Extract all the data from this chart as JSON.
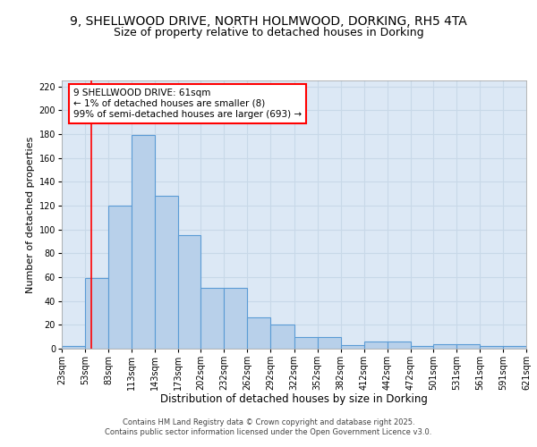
{
  "title1": "9, SHELLWOOD DRIVE, NORTH HOLMWOOD, DORKING, RH5 4TA",
  "title2": "Size of property relative to detached houses in Dorking",
  "xlabel": "Distribution of detached houses by size in Dorking",
  "ylabel": "Number of detached properties",
  "bar_values": [
    2,
    59,
    120,
    179,
    128,
    95,
    51,
    51,
    26,
    20,
    10,
    10,
    3,
    6,
    6,
    2,
    4,
    4,
    2,
    2
  ],
  "bin_left": [
    23,
    53,
    83,
    113,
    143,
    173,
    202,
    232,
    262,
    292,
    322,
    352,
    382,
    412,
    442,
    472,
    501,
    531,
    561,
    591
  ],
  "bin_right": [
    53,
    83,
    113,
    143,
    173,
    202,
    232,
    262,
    292,
    322,
    352,
    382,
    412,
    442,
    472,
    501,
    531,
    561,
    591,
    621
  ],
  "tick_labels": [
    "23sqm",
    "53sqm",
    "83sqm",
    "113sqm",
    "143sqm",
    "173sqm",
    "202sqm",
    "232sqm",
    "262sqm",
    "292sqm",
    "322sqm",
    "352sqm",
    "382sqm",
    "412sqm",
    "442sqm",
    "472sqm",
    "501sqm",
    "531sqm",
    "561sqm",
    "591sqm",
    "621sqm"
  ],
  "tick_positions": [
    23,
    53,
    83,
    113,
    143,
    173,
    202,
    232,
    262,
    292,
    322,
    352,
    382,
    412,
    442,
    472,
    501,
    531,
    561,
    591,
    621
  ],
  "bar_color": "#b8d0ea",
  "bar_edge_color": "#5b9bd5",
  "grid_color": "#c8d8e8",
  "bg_color": "#dce8f5",
  "red_line_x": 61,
  "annotation_text": "9 SHELLWOOD DRIVE: 61sqm\n← 1% of detached houses are smaller (8)\n99% of semi-detached houses are larger (693) →",
  "ylim": [
    0,
    225
  ],
  "yticks": [
    0,
    20,
    40,
    60,
    80,
    100,
    120,
    140,
    160,
    180,
    200,
    220
  ],
  "footer": "Contains HM Land Registry data © Crown copyright and database right 2025.\nContains public sector information licensed under the Open Government Licence v3.0.",
  "title1_fontsize": 10,
  "title2_fontsize": 9,
  "xlabel_fontsize": 8.5,
  "ylabel_fontsize": 8,
  "tick_fontsize": 7,
  "annotation_fontsize": 7.5,
  "footer_fontsize": 6
}
